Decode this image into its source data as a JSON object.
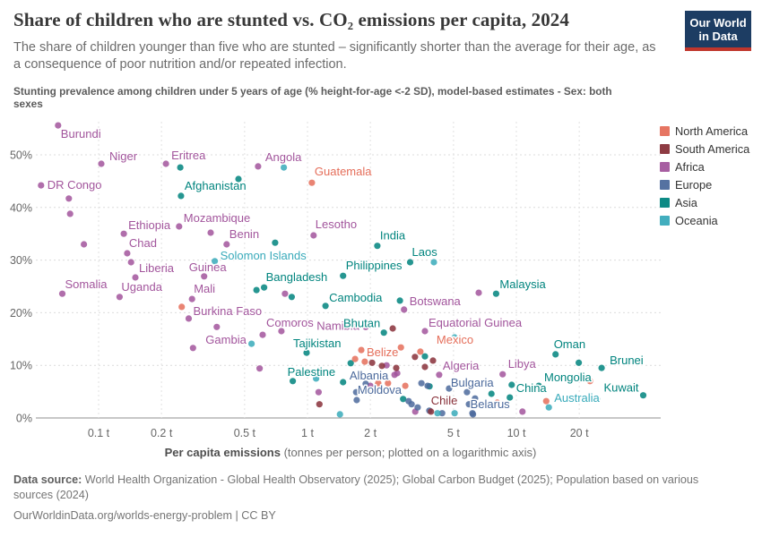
{
  "header": {
    "title": "Share of children who are stunted vs. CO₂ emissions per capita, 2024",
    "subtitle_lines": [
      "The share of children younger than five who are stunted – significantly shorter than the average for their age, as",
      "a consequence of poor nutrition and/or repeated infection."
    ],
    "logo": {
      "line1": "Our World",
      "line2": "in Data"
    }
  },
  "axis_note_lines": [
    "Stunting prevalence among children under 5 years of age (% height-for-age <-2 SD), model-based estimates - Sex: both",
    "sexes"
  ],
  "legend": {
    "items": [
      {
        "label": "North America",
        "color": "#E56E5A"
      },
      {
        "label": "South America",
        "color": "#883039"
      },
      {
        "label": "Africa",
        "color": "#A2559C"
      },
      {
        "label": "Europe",
        "color": "#4C6A9C"
      },
      {
        "label": "Asia",
        "color": "#00847E"
      },
      {
        "label": "Oceania",
        "color": "#38AABA"
      }
    ]
  },
  "chart_data": {
    "type": "scatter",
    "title": "Share of children who are stunted vs. CO₂ emissions per capita, 2024",
    "xlabel_bold": "Per capita emissions",
    "xlabel_rest": " (tonnes per person; plotted on a logarithmic axis)",
    "ylabel": "Stunting prevalence among children under 5 years of age (%)",
    "x_scale": "log",
    "x_ticks": [
      0.1,
      0.2,
      0.5,
      1,
      2,
      5,
      10,
      20
    ],
    "x_tick_labels": [
      "0.1 t",
      "0.2 t",
      "0.5 t",
      "1 t",
      "2 t",
      "5 t",
      "10 t",
      "20 t"
    ],
    "y_ticks": [
      0,
      10,
      20,
      30,
      40,
      50
    ],
    "y_tick_labels": [
      "0%",
      "10%",
      "20%",
      "30%",
      "40%",
      "50%"
    ],
    "x_range": [
      0.04,
      45
    ],
    "y_range": [
      0,
      56
    ],
    "grid": true,
    "legend_position": "right",
    "series": [
      {
        "name": "Africa",
        "color": "#A2559C",
        "points": [
          {
            "x": 0.064,
            "y": 55.6,
            "n": "Burundi",
            "dx": 3,
            "dy": 14,
            "a": "start"
          },
          {
            "x": 0.103,
            "y": 48.3,
            "n": "Niger",
            "dx": 9,
            "dy": -4,
            "a": "start"
          },
          {
            "x": 0.21,
            "y": 48.3,
            "n": "Eritrea",
            "dx": 6,
            "dy": -5,
            "a": "start"
          },
          {
            "x": 0.053,
            "y": 44.2,
            "n": "DR Congo",
            "dx": 7,
            "dy": 4,
            "a": "start"
          },
          {
            "x": 0.58,
            "y": 47.8,
            "n": "Angola",
            "dx": 8,
            "dy": -6,
            "a": "start"
          },
          {
            "x": 0.132,
            "y": 35.0,
            "n": "Ethiopia",
            "dx": 5,
            "dy": -5,
            "a": "start"
          },
          {
            "x": 0.243,
            "y": 36.4,
            "n": "Mozambique",
            "dx": 5,
            "dy": -5,
            "a": "start"
          },
          {
            "x": 0.137,
            "y": 31.3,
            "n": "Chad",
            "dx": 2,
            "dy": -7,
            "a": "start"
          },
          {
            "x": 0.41,
            "y": 33.0,
            "n": "Benin",
            "dx": 3,
            "dy": -7,
            "a": "start"
          },
          {
            "x": 1.07,
            "y": 34.7,
            "n": "Lesotho",
            "dx": 2,
            "dy": -8,
            "a": "start"
          },
          {
            "x": 0.15,
            "y": 26.7,
            "n": "Liberia",
            "dx": 4,
            "dy": -6,
            "a": "start"
          },
          {
            "x": 0.067,
            "y": 23.6,
            "n": "Somalia",
            "dx": 3,
            "dy": -6,
            "a": "start"
          },
          {
            "x": 0.126,
            "y": 23.0,
            "n": "Uganda",
            "dx": 2,
            "dy": -7,
            "a": "start"
          },
          {
            "x": 0.32,
            "y": 26.9,
            "n": "Guinea",
            "dx": -17,
            "dy": -6,
            "a": "start"
          },
          {
            "x": 0.28,
            "y": 22.6,
            "n": "Mali",
            "dx": 2,
            "dy": -7,
            "a": "start"
          },
          {
            "x": 0.27,
            "y": 18.9,
            "n": "Burkina Faso",
            "dx": 5,
            "dy": -4,
            "a": "start"
          },
          {
            "x": 2.9,
            "y": 20.6,
            "n": "Botswana",
            "dx": 6,
            "dy": -5,
            "a": "start"
          },
          {
            "x": 0.61,
            "y": 15.8,
            "n": "Comoros",
            "dx": 4,
            "dy": -9,
            "a": "start"
          },
          {
            "x": 1.9,
            "y": 17.3,
            "n": "Namibia",
            "dx": -7,
            "dy": 3,
            "a": "end"
          },
          {
            "x": 3.65,
            "y": 16.5,
            "n": "Equatorial Guinea",
            "dx": 4,
            "dy": -5,
            "a": "start"
          },
          {
            "x": 0.283,
            "y": 13.3,
            "n": "Gambia",
            "dx": 14,
            "dy": -5,
            "a": "start"
          },
          {
            "x": 4.27,
            "y": 8.2,
            "n": "Algeria",
            "dx": 4,
            "dy": -6,
            "a": "start"
          },
          {
            "x": 8.6,
            "y": 8.3,
            "n": "Libya",
            "dx": 6,
            "dy": -7,
            "a": "start"
          },
          [
            0.072,
            41.7
          ],
          [
            0.073,
            38.8
          ],
          [
            0.085,
            33.0
          ],
          [
            0.143,
            29.6
          ],
          [
            0.344,
            35.2
          ],
          [
            0.78,
            23.6
          ],
          [
            0.368,
            17.3
          ],
          [
            0.75,
            16.5
          ],
          [
            0.59,
            9.4
          ],
          [
            6.6,
            23.8
          ],
          [
            2.61,
            8.2
          ],
          [
            2.39,
            10.0
          ],
          [
            2.69,
            8.5
          ],
          [
            1.13,
            4.9
          ],
          [
            3.28,
            1.2
          ],
          [
            10.7,
            1.2
          ],
          [
            2.0,
            6.1
          ]
        ]
      },
      {
        "name": "Asia",
        "color": "#00847E",
        "points": [
          {
            "x": 0.248,
            "y": 42.2,
            "n": "Afghanistan",
            "dx": 4,
            "dy": -7,
            "a": "start"
          },
          {
            "x": 2.16,
            "y": 32.7,
            "n": "India",
            "dx": 3,
            "dy": -7,
            "a": "start"
          },
          {
            "x": 3.1,
            "y": 29.6,
            "n": "Laos",
            "dx": 2,
            "dy": -7,
            "a": "start"
          },
          {
            "x": 1.48,
            "y": 27.0,
            "n": "Philippines",
            "dx": 3,
            "dy": -7,
            "a": "start"
          },
          {
            "x": 0.62,
            "y": 24.8,
            "n": "Bangladesh",
            "dx": 2,
            "dy": -7,
            "a": "start"
          },
          {
            "x": 1.22,
            "y": 21.3,
            "n": "Cambodia",
            "dx": 4,
            "dy": -5,
            "a": "start"
          },
          {
            "x": 8.0,
            "y": 23.6,
            "n": "Malaysia",
            "dx": 4,
            "dy": -6,
            "a": "start"
          },
          {
            "x": 2.32,
            "y": 16.2,
            "n": "Bhutan",
            "dx": -4,
            "dy": -6,
            "a": "end"
          },
          {
            "x": 0.99,
            "y": 12.4,
            "n": "Tajikistan",
            "dx": -15,
            "dy": -6,
            "a": "start"
          },
          {
            "x": 0.85,
            "y": 7.0,
            "n": "Palestine",
            "dx": -6,
            "dy": -6,
            "a": "start"
          },
          {
            "x": 15.4,
            "y": 12.1,
            "n": "Oman",
            "dx": -2,
            "dy": -7,
            "a": "start"
          },
          {
            "x": 25.6,
            "y": 9.5,
            "n": "Brunei",
            "dx": 9,
            "dy": -4,
            "a": "start"
          },
          {
            "x": 12.8,
            "y": 6.1,
            "n": "Mongolia",
            "dx": 6,
            "dy": -5,
            "a": "start"
          },
          {
            "x": 9.3,
            "y": 3.9,
            "n": "China",
            "dx": 7,
            "dy": -6,
            "a": "start"
          },
          {
            "x": 40.5,
            "y": 4.3,
            "n": "Kuwait",
            "dx": -5,
            "dy": -4,
            "a": "end"
          },
          [
            0.246,
            47.6
          ],
          [
            0.467,
            45.4
          ],
          [
            0.7,
            33.3
          ],
          [
            0.57,
            24.3
          ],
          [
            0.84,
            23.0
          ],
          [
            2.77,
            22.3
          ],
          [
            1.61,
            10.4
          ],
          [
            1.48,
            6.8
          ],
          [
            19.9,
            10.5
          ],
          [
            24.3,
            3.6
          ],
          [
            7.6,
            4.6
          ],
          [
            9.5,
            6.3
          ],
          [
            3.84,
            6.0
          ],
          [
            3.65,
            11.7
          ],
          [
            2.87,
            3.6
          ]
        ]
      },
      {
        "name": "Europe",
        "color": "#4C6A9C",
        "points": [
          {
            "x": 1.9,
            "y": 6.5,
            "n": "Albania",
            "dx": -18,
            "dy": -5,
            "a": "start"
          },
          {
            "x": 1.72,
            "y": 3.4,
            "n": "Moldova",
            "dx": 1,
            "dy": -7,
            "a": "start"
          },
          {
            "x": 5.8,
            "y": 4.9,
            "n": "Bulgaria",
            "dx": -18,
            "dy": -6,
            "a": "start"
          },
          {
            "x": 6.2,
            "y": 0.7,
            "n": "Belarus",
            "dx": -3,
            "dy": -7,
            "a": "start"
          },
          [
            3.51,
            6.6
          ],
          [
            3.76,
            6.1
          ],
          [
            4.76,
            5.6
          ],
          [
            6.34,
            3.7
          ],
          [
            3.05,
            3.2
          ],
          [
            4.41,
            0.9
          ],
          [
            5.93,
            2.6
          ],
          [
            6.16,
            0.9
          ],
          [
            3.15,
            2.6
          ],
          [
            3.37,
            2.0
          ],
          [
            3.83,
            1.4
          ],
          [
            1.71,
            4.9
          ]
        ]
      },
      {
        "name": "North America",
        "color": "#E56E5A",
        "points": [
          {
            "x": 1.05,
            "y": 44.7,
            "n": "Guatemala",
            "dx": 3,
            "dy": -8,
            "a": "start"
          },
          {
            "x": 1.81,
            "y": 12.9,
            "n": "Belize",
            "dx": 6,
            "dy": 7,
            "a": "start"
          },
          {
            "x": 3.47,
            "y": 12.6,
            "n": "Mexico",
            "dx": 18,
            "dy": -9,
            "a": "start"
          },
          [
            0.25,
            21.1
          ],
          [
            2.8,
            13.4
          ],
          [
            1.69,
            11.2
          ],
          [
            1.88,
            10.7
          ],
          [
            2.43,
            6.6
          ],
          [
            2.94,
            6.1
          ],
          [
            2.18,
            6.6
          ],
          [
            8.1,
            2.9
          ],
          [
            22.5,
            7.0
          ],
          [
            13.9,
            3.2
          ]
        ]
      },
      {
        "name": "South America",
        "color": "#883039",
        "points": [
          {
            "x": 3.9,
            "y": 1.2,
            "n": "Chile",
            "dx": 0,
            "dy": -8,
            "a": "start"
          },
          [
            2.04,
            10.5
          ],
          [
            2.27,
            9.9
          ],
          [
            2.56,
            17.0
          ],
          [
            3.27,
            11.6
          ],
          [
            3.65,
            9.7
          ],
          [
            3.99,
            10.9
          ],
          [
            1.14,
            2.6
          ],
          [
            2.66,
            9.5
          ]
        ]
      },
      {
        "name": "Oceania",
        "color": "#38AABA",
        "points": [
          {
            "x": 0.36,
            "y": 29.8,
            "n": "Solomon Islands",
            "dx": 6,
            "dy": -2,
            "a": "start"
          },
          {
            "x": 14.3,
            "y": 2.0,
            "n": "Australia",
            "dx": 6,
            "dy": -6,
            "a": "start"
          },
          [
            0.77,
            47.6
          ],
          [
            4.03,
            29.6
          ],
          [
            5.06,
            15.3
          ],
          [
            0.54,
            14.1
          ],
          [
            1.1,
            7.5
          ],
          [
            1.43,
            0.7
          ],
          [
            4.19,
            0.9
          ],
          [
            5.06,
            0.9
          ]
        ]
      }
    ]
  },
  "footer": {
    "source_label": "Data source:",
    "source_rest_line1": " World Health Organization - Global Health Observatory (2025); Global Carbon Budget (2025); Population based on various",
    "source_line2": "sources (2024)",
    "license": "OurWorldinData.org/worlds-energy-problem | CC BY"
  }
}
